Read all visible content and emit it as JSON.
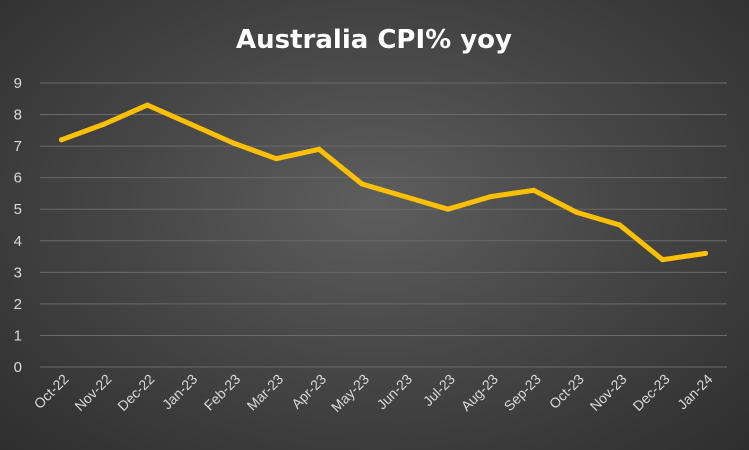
{
  "chart_data": {
    "type": "line",
    "title": "Australia CPI% yoy",
    "categories": [
      "Oct-22",
      "Nov-22",
      "Dec-22",
      "Jan-23",
      "Feb-23",
      "Mar-23",
      "Apr-23",
      "May-23",
      "Jun-23",
      "Jul-23",
      "Aug-23",
      "Sep-23",
      "Oct-23",
      "Nov-23",
      "Dec-23",
      "Jan-24"
    ],
    "series": [
      {
        "values": [
          7.2,
          7.7,
          8.3,
          7.7,
          7.1,
          6.6,
          6.9,
          5.8,
          5.4,
          5.0,
          5.4,
          5.6,
          4.9,
          4.5,
          3.4,
          3.6
        ],
        "color": "#FFC000"
      }
    ],
    "ylim": [
      0,
      9
    ],
    "yticks": [
      "0",
      "1",
      "2",
      "3",
      "4",
      "5",
      "6",
      "7",
      "8",
      "9"
    ],
    "xlabel": "",
    "ylabel": "",
    "grid": true,
    "legend": "none",
    "colors": {
      "background": "#474747",
      "grid": "#6a6a6a",
      "text": "#d9d9d9",
      "title": "#ffffff"
    }
  }
}
